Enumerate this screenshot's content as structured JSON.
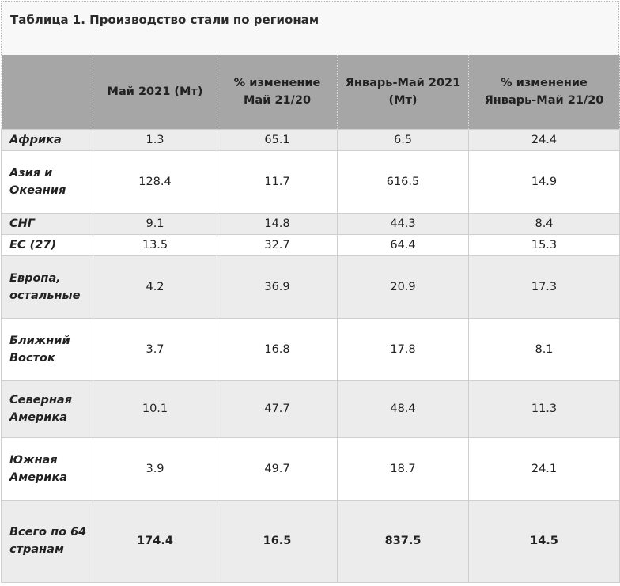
{
  "table": {
    "title": "Таблица 1. Производство стали по регионам",
    "headers": [
      "",
      "Май 2021 (Мт)",
      "% изменение Май 21/20",
      "Январь-Май 2021 (Мт)",
      "% изменение Январь-Май 21/20"
    ],
    "rows": [
      {
        "region": "Африка",
        "may_2021": "1.3",
        "may_change": "65.1",
        "jan_may_2021": "6.5",
        "jan_may_change": "24.4"
      },
      {
        "region": "Азия и Океания",
        "may_2021": "128.4",
        "may_change": "11.7",
        "jan_may_2021": "616.5",
        "jan_may_change": "14.9"
      },
      {
        "region": "СНГ",
        "may_2021": "9.1",
        "may_change": "14.8",
        "jan_may_2021": "44.3",
        "jan_may_change": "8.4"
      },
      {
        "region": "ЕС (27)",
        "may_2021": "13.5",
        "may_change": "32.7",
        "jan_may_2021": "64.4",
        "jan_may_change": "15.3"
      },
      {
        "region": "Европа, остальные",
        "may_2021": "4.2",
        "may_change": "36.9",
        "jan_may_2021": "20.9",
        "jan_may_change": "17.3"
      },
      {
        "region": "Ближний Восток",
        "may_2021": "3.7",
        "may_change": "16.8",
        "jan_may_2021": "17.8",
        "jan_may_change": "8.1"
      },
      {
        "region": "Северная Америка",
        "may_2021": "10.1",
        "may_change": "47.7",
        "jan_may_2021": "48.4",
        "jan_may_change": "11.3"
      },
      {
        "region": "Южная Америка",
        "may_2021": "3.9",
        "may_change": "49.7",
        "jan_may_2021": "18.7",
        "jan_may_change": "24.1"
      },
      {
        "region": "Всего по 64 странам",
        "may_2021": "174.4",
        "may_change": "16.5",
        "jan_may_2021": "837.5",
        "jan_may_change": "14.5"
      }
    ]
  }
}
